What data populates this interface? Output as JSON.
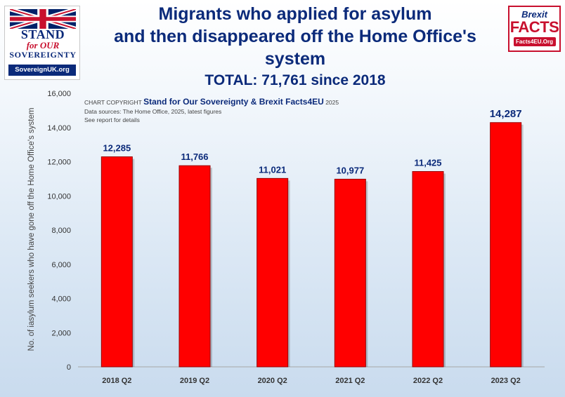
{
  "header": {
    "title_line1": "Migrants who applied for asylum",
    "title_line2": "and then disappeared off the Home Office's system",
    "total": "TOTAL: 71,761 since 2018"
  },
  "logo_left": {
    "stand": "STAND",
    "for_our": "for OUR",
    "sovereignty": "SOVEREIGNTY",
    "url": "SovereignUK.org"
  },
  "logo_right": {
    "brexit": "Brexit",
    "facts": "FACTS",
    "url": "Facts4EU.Org"
  },
  "credit": {
    "prefix": "CHART COPYRIGHT",
    "owners": "Stand for Our Sovereignty & Brexit Facts4EU",
    "year": "2025",
    "sources": "Data sources: The Home Office, 2025, latest figures",
    "note": "See report for details"
  },
  "colors": {
    "bar": "#ff0000",
    "bar_border": "#9a0000",
    "title": "#0b2a7a",
    "label": "#0b2a7a"
  },
  "chart_data": {
    "type": "bar",
    "categories": [
      "2018 Q2",
      "2019 Q2",
      "2020 Q2",
      "2021 Q2",
      "2022 Q2",
      "2023 Q2"
    ],
    "values": [
      12285,
      11766,
      11021,
      10977,
      11425,
      14287
    ],
    "data_labels": [
      "12,285",
      "11,766",
      "11,021",
      "10,977",
      "11,425",
      "14,287"
    ],
    "title": "Migrants who applied for asylum and then disappeared off the Home Office's system",
    "xlabel": "",
    "ylabel": "No. of iasylum seekers who have gone off the Home Office's system",
    "ylim": [
      0,
      16000
    ],
    "yticks": [
      0,
      2000,
      4000,
      6000,
      8000,
      10000,
      12000,
      14000,
      16000
    ],
    "ytick_labels": [
      "0",
      "2,000",
      "4,000",
      "6,000",
      "8,000",
      "10,000",
      "12,000",
      "14,000",
      "16,000"
    ],
    "grid": false,
    "legend": "none"
  }
}
